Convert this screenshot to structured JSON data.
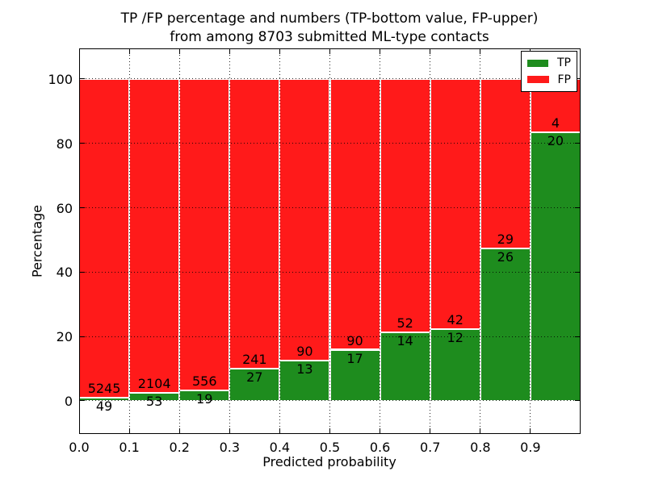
{
  "chart_data": {
    "type": "bar",
    "stacked": true,
    "title_line1": "TP /FP percentage and numbers (TP-bottom value, FP-upper)",
    "title_line2": "from among 8703 submitted ML-type contacts",
    "xlabel": "Predicted probability",
    "ylabel": "Percentage",
    "xlim": [
      0,
      1
    ],
    "ylim": [
      -10.3,
      109.5
    ],
    "grid": "dotted",
    "bar_edge_color": "#ffffff",
    "legend": {
      "position": "upper-right",
      "entries": [
        {
          "label": "TP",
          "color": "#1e8c1e"
        },
        {
          "label": "FP",
          "color": "#ff1a1a"
        }
      ]
    },
    "xticks": [
      "0.0",
      "0.1",
      "0.2",
      "0.3",
      "0.4",
      "0.5",
      "0.6",
      "0.7",
      "0.8",
      "0.9"
    ],
    "yticks": [
      "0",
      "20",
      "40",
      "60",
      "80",
      "100"
    ],
    "bins": [
      {
        "x_start": 0.0,
        "x_end": 0.1,
        "tp": 49,
        "fp": 5245
      },
      {
        "x_start": 0.1,
        "x_end": 0.2,
        "tp": 53,
        "fp": 2104
      },
      {
        "x_start": 0.2,
        "x_end": 0.3,
        "tp": 19,
        "fp": 556
      },
      {
        "x_start": 0.3,
        "x_end": 0.4,
        "tp": 27,
        "fp": 241
      },
      {
        "x_start": 0.4,
        "x_end": 0.5,
        "tp": 13,
        "fp": 90
      },
      {
        "x_start": 0.5,
        "x_end": 0.6,
        "tp": 17,
        "fp": 90
      },
      {
        "x_start": 0.6,
        "x_end": 0.7,
        "tp": 14,
        "fp": 52
      },
      {
        "x_start": 0.7,
        "x_end": 0.8,
        "tp": 12,
        "fp": 42
      },
      {
        "x_start": 0.8,
        "x_end": 0.9,
        "tp": 26,
        "fp": 29
      },
      {
        "x_start": 0.9,
        "x_end": 1.0,
        "tp": 20,
        "fp": 4
      }
    ]
  }
}
